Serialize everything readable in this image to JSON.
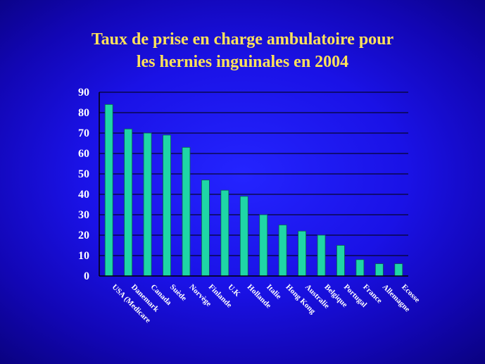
{
  "chart_data": {
    "type": "bar",
    "title_lines": [
      "Taux de prise en charge ambulatoire pour",
      "les hernies inguinales en 2004"
    ],
    "categories": [
      "USA (Medicare",
      "Danemark",
      "Canada",
      "Suède",
      "Norvège",
      "Finlande",
      "U.K",
      "Hollande",
      "Italie",
      "Hong Kong",
      "Australie",
      "Belgique",
      "Portugal",
      "France",
      "Allemagne",
      "Ecosse"
    ],
    "values": [
      84,
      72,
      70,
      69,
      63,
      47,
      42,
      39,
      30,
      25,
      22,
      20,
      15,
      8,
      6,
      6
    ],
    "ylim": [
      0,
      90
    ],
    "yticks": [
      0,
      10,
      20,
      30,
      40,
      50,
      60,
      70,
      80,
      90
    ],
    "grid": true,
    "legend": "none",
    "colors": {
      "bar": "#1fd6a6",
      "bar_edge": "#0b5d52",
      "grid": "#000000",
      "title": "#ffe25a",
      "labels": "#ffffff"
    }
  }
}
